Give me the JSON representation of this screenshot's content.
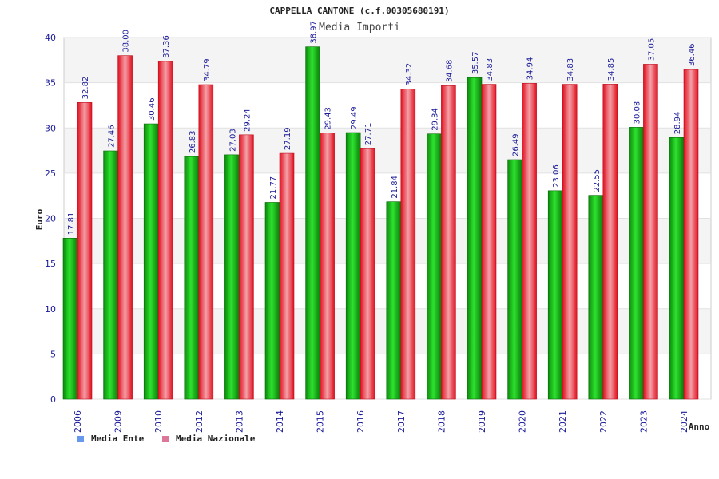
{
  "chart_data": {
    "type": "bar",
    "title": "CAPPELLA CANTONE (c.f.00305680191)",
    "subtitle": "Media Importi",
    "xlabel": "Anno",
    "ylabel": "Euro",
    "ylim": [
      0,
      40
    ],
    "yticks": [
      0,
      5,
      10,
      15,
      20,
      25,
      30,
      35,
      40
    ],
    "grid": true,
    "legend_position": "bottom-left",
    "categories": [
      "2006",
      "2009",
      "2010",
      "2012",
      "2013",
      "2014",
      "2015",
      "2016",
      "2017",
      "2018",
      "2019",
      "2020",
      "2021",
      "2022",
      "2023",
      "2024"
    ],
    "series": [
      {
        "name": "Media Ente",
        "color": "#22c022",
        "legend_color": "#6699ee",
        "values": [
          17.81,
          27.46,
          30.46,
          26.83,
          27.03,
          21.77,
          38.97,
          29.49,
          21.84,
          29.34,
          35.57,
          26.49,
          23.06,
          22.55,
          30.08,
          28.94
        ],
        "labels": [
          "17.81",
          "27.46",
          "30.46",
          "26.83",
          "27.03",
          "21.77",
          "38.97",
          "29.49",
          "21.84",
          "29.34",
          "35.57",
          "26.49",
          "23.06",
          "22.55",
          "30.08",
          "28.94"
        ]
      },
      {
        "name": "Media Nazionale",
        "color": "#ee2233",
        "legend_color": "#dd7799",
        "values": [
          32.82,
          38.0,
          37.36,
          34.79,
          29.24,
          27.19,
          29.43,
          27.71,
          34.32,
          34.68,
          34.83,
          34.94,
          34.83,
          34.85,
          37.05,
          36.46
        ],
        "labels": [
          "32.82",
          "38.00",
          "37.36",
          "34.79",
          "29.24",
          "27.19",
          "29.43",
          "27.71",
          "34.32",
          "34.68",
          "34.83",
          "34.94",
          "34.83",
          "34.85",
          "37.05",
          "36.46"
        ]
      }
    ]
  }
}
